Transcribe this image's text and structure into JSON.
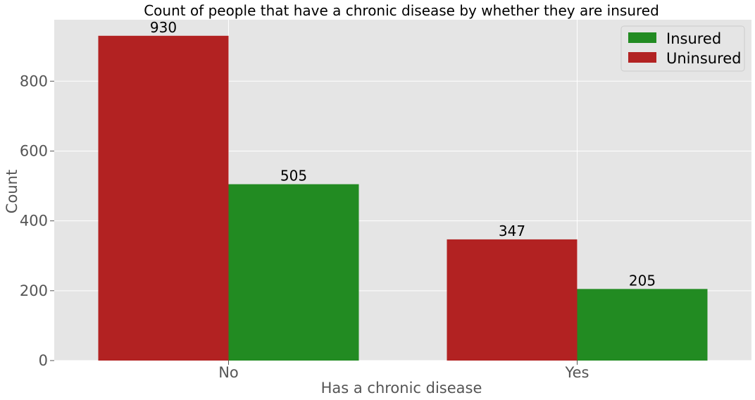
{
  "chart_data": {
    "type": "bar",
    "title": "Count of people that have a chronic disease by whether they are insured",
    "xlabel": "Has a chronic disease",
    "ylabel": "Count",
    "categories": [
      "No",
      "Yes"
    ],
    "series": [
      {
        "name": "Uninsured",
        "values": [
          930,
          347
        ],
        "color": "#b22222"
      },
      {
        "name": "Insured",
        "values": [
          505,
          205
        ],
        "color": "#228b22"
      }
    ],
    "ylim": [
      0,
      976
    ],
    "yticks": [
      0,
      200,
      400,
      600,
      800
    ],
    "legend": {
      "placement": "top-right",
      "order": [
        "Insured",
        "Uninsured"
      ]
    },
    "grid": true,
    "background": "#e5e5e5",
    "grid_color": "#ffffff"
  }
}
